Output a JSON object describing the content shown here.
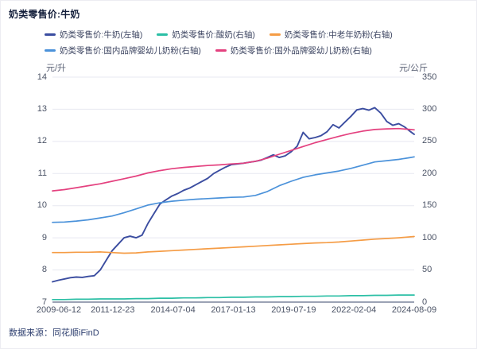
{
  "page": {
    "title": "奶类零售价:牛奶",
    "source": "数据来源：同花顺iFinD"
  },
  "axes": {
    "left_unit": "元/升",
    "right_unit": "元/公斤",
    "left_ticks": [
      14,
      13,
      12,
      11,
      10,
      9,
      8,
      7
    ],
    "right_ticks": [
      350,
      300,
      250,
      200,
      150,
      100,
      50,
      0
    ],
    "x_ticks": [
      "2009-06-12",
      "2011-12-23",
      "2014-07-04",
      "2017-01-13",
      "2019-07-19",
      "2022-02-04",
      "2024-08-09"
    ]
  },
  "colors": {
    "milk": "#3b4da0",
    "yogurt": "#2bbfa5",
    "senior_powder": "#f59c45",
    "domestic_formula": "#4b92da",
    "foreign_formula": "#e4417f",
    "gridline": "#e7e8f0",
    "axis_line": "#9ca3b5"
  },
  "chart_data": {
    "type": "line",
    "title": "奶类零售价:牛奶",
    "x_unit": "decimal_year",
    "x_range": [
      2009.45,
      2024.6
    ],
    "x_tick_labels": [
      "2009-06-12",
      "2011-12-23",
      "2014-07-04",
      "2017-01-13",
      "2019-07-19",
      "2022-02-04",
      "2024-08-09"
    ],
    "left_axis": {
      "label": "元/升",
      "range": [
        7,
        14
      ]
    },
    "right_axis": {
      "label": "元/公斤",
      "range": [
        0,
        350
      ]
    },
    "grid": true,
    "legend_position": "top",
    "legend_rows": [
      [
        0,
        1,
        2
      ],
      [
        3,
        4
      ]
    ],
    "series": [
      {
        "name": "奶类零售价:牛奶(左轴)",
        "axis": "left",
        "color": "#3b4da0",
        "x": [
          2009.45,
          2009.7,
          2009.95,
          2010.2,
          2010.45,
          2010.7,
          2010.95,
          2011.2,
          2011.45,
          2011.7,
          2011.95,
          2012.2,
          2012.45,
          2012.7,
          2012.95,
          2013.2,
          2013.45,
          2013.7,
          2013.95,
          2014.2,
          2014.45,
          2014.7,
          2014.95,
          2015.2,
          2015.45,
          2015.7,
          2015.95,
          2016.2,
          2016.45,
          2016.7,
          2016.95,
          2017.2,
          2017.45,
          2017.7,
          2017.95,
          2018.2,
          2018.45,
          2018.7,
          2018.95,
          2019.2,
          2019.45,
          2019.7,
          2019.95,
          2020.2,
          2020.45,
          2020.7,
          2020.95,
          2021.2,
          2021.45,
          2021.7,
          2021.95,
          2022.2,
          2022.45,
          2022.7,
          2022.95,
          2023.2,
          2023.45,
          2023.7,
          2023.95,
          2024.2,
          2024.45,
          2024.6
        ],
        "values": [
          7.63,
          7.68,
          7.72,
          7.76,
          7.78,
          7.77,
          7.8,
          7.82,
          8.0,
          8.3,
          8.6,
          8.8,
          9.0,
          9.05,
          9.0,
          9.08,
          9.45,
          9.75,
          10.05,
          10.18,
          10.3,
          10.38,
          10.48,
          10.55,
          10.65,
          10.75,
          10.85,
          11.0,
          11.1,
          11.2,
          11.28,
          11.3,
          11.32,
          11.35,
          11.38,
          11.42,
          11.5,
          11.58,
          11.5,
          11.55,
          11.68,
          11.85,
          12.28,
          12.08,
          12.12,
          12.18,
          12.3,
          12.52,
          12.42,
          12.6,
          12.78,
          12.98,
          13.02,
          12.97,
          13.05,
          12.88,
          12.62,
          12.5,
          12.55,
          12.45,
          12.3,
          12.22
        ]
      },
      {
        "name": "奶类零售价:酸奶(右轴)",
        "axis": "right",
        "color": "#2bbfa5",
        "x": [
          2009.45,
          2009.95,
          2010.45,
          2010.95,
          2011.45,
          2011.95,
          2012.45,
          2012.95,
          2013.45,
          2013.95,
          2014.45,
          2014.95,
          2015.45,
          2015.95,
          2016.45,
          2016.95,
          2017.45,
          2017.95,
          2018.45,
          2018.95,
          2019.45,
          2019.95,
          2020.45,
          2020.95,
          2021.45,
          2021.95,
          2022.45,
          2022.95,
          2023.45,
          2023.95,
          2024.45,
          2024.6
        ],
        "values": [
          4,
          4,
          4.5,
          4.5,
          5,
          5,
          5,
          5.5,
          5.5,
          6,
          6,
          6.5,
          6.5,
          7,
          7,
          7.5,
          7.5,
          8,
          8,
          8.5,
          8.5,
          9,
          9,
          9.5,
          9.5,
          10,
          10,
          10.5,
          10.5,
          11,
          11,
          11
        ]
      },
      {
        "name": "奶类零售价:中老年奶粉(右轴)",
        "axis": "right",
        "color": "#f59c45",
        "x": [
          2009.45,
          2009.95,
          2010.45,
          2010.95,
          2011.45,
          2011.95,
          2012.45,
          2012.95,
          2013.45,
          2013.95,
          2014.45,
          2014.95,
          2015.45,
          2015.95,
          2016.45,
          2016.95,
          2017.45,
          2017.95,
          2018.45,
          2018.95,
          2019.45,
          2019.95,
          2020.45,
          2020.95,
          2021.45,
          2021.95,
          2022.45,
          2022.95,
          2023.45,
          2023.95,
          2024.45,
          2024.6
        ],
        "values": [
          77,
          77,
          77.5,
          77.5,
          78,
          77,
          76,
          76.5,
          78,
          79,
          80,
          81,
          82,
          83,
          84,
          85,
          86,
          87,
          88,
          89,
          90,
          91,
          92,
          92.5,
          93.5,
          95,
          96.5,
          98,
          99,
          100,
          101.5,
          102
        ]
      },
      {
        "name": "奶类零售价:国内品牌婴幼儿奶粉(右轴)",
        "axis": "right",
        "color": "#4b92da",
        "x": [
          2009.45,
          2009.95,
          2010.45,
          2010.95,
          2011.45,
          2011.95,
          2012.45,
          2012.95,
          2013.45,
          2013.95,
          2014.45,
          2014.95,
          2015.45,
          2015.95,
          2016.45,
          2016.95,
          2017.45,
          2017.95,
          2018.45,
          2018.95,
          2019.45,
          2019.95,
          2020.45,
          2020.95,
          2021.45,
          2021.95,
          2022.45,
          2022.95,
          2023.45,
          2023.95,
          2024.45,
          2024.6
        ],
        "values": [
          124,
          124.5,
          126,
          128,
          131,
          134,
          139,
          145,
          151,
          154.5,
          157,
          158.5,
          160,
          161,
          162,
          163,
          163.5,
          166,
          172,
          181,
          188,
          194,
          198,
          201,
          204,
          208,
          213,
          218,
          220,
          222,
          225,
          226
        ]
      },
      {
        "name": "奶类零售价:国外品牌婴幼儿奶粉(右轴)",
        "axis": "right",
        "color": "#e4417f",
        "x": [
          2009.45,
          2009.95,
          2010.45,
          2010.95,
          2011.45,
          2011.95,
          2012.45,
          2012.95,
          2013.45,
          2013.95,
          2014.45,
          2014.95,
          2015.45,
          2015.95,
          2016.45,
          2016.95,
          2017.45,
          2017.95,
          2018.45,
          2018.95,
          2019.45,
          2019.95,
          2020.45,
          2020.95,
          2021.45,
          2021.95,
          2022.45,
          2022.95,
          2023.45,
          2023.95,
          2024.45,
          2024.6
        ],
        "values": [
          173,
          175,
          178,
          181,
          184,
          188,
          192,
          196,
          201,
          204.5,
          207.5,
          209.5,
          211,
          212.5,
          213.5,
          215,
          216,
          219,
          224,
          230,
          236,
          242,
          248,
          253,
          258,
          262.5,
          266,
          268.5,
          269.5,
          270,
          268.5,
          268
        ]
      }
    ]
  }
}
